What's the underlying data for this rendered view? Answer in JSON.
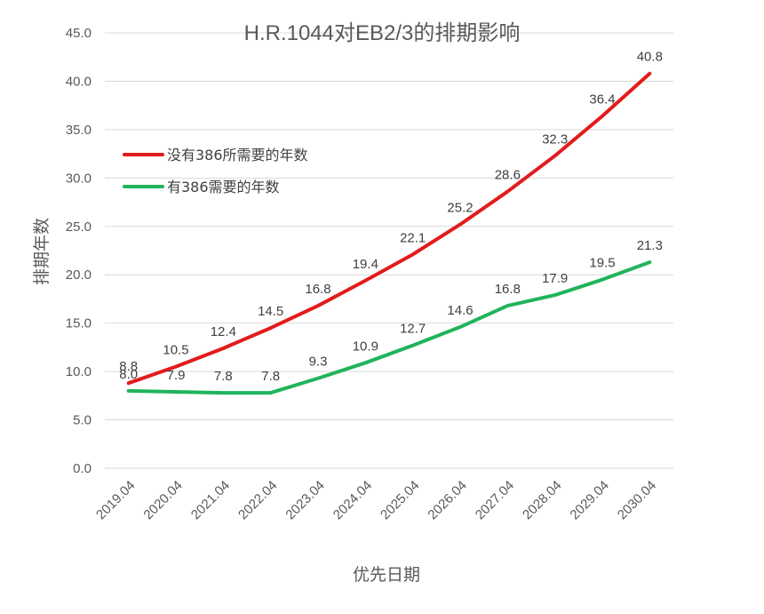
{
  "chart_data": {
    "type": "line",
    "title": "H.R.1044对EB2/3的排期影响",
    "xlabel": "优先日期",
    "ylabel": "排期年数",
    "categories": [
      "2019.04",
      "2020.04",
      "2021.04",
      "2022.04",
      "2023.04",
      "2024.04",
      "2025.04",
      "2026.04",
      "2027.04",
      "2028.04",
      "2029.04",
      "2030.04"
    ],
    "ylim": [
      0,
      45
    ],
    "yticks": [
      "0.0",
      "5.0",
      "10.0",
      "15.0",
      "20.0",
      "25.0",
      "30.0",
      "35.0",
      "40.0",
      "45.0"
    ],
    "grid": true,
    "legend_position": "upper-left",
    "series": [
      {
        "name": "没有386所需要的年数",
        "color": "#e31b1b",
        "values": [
          8.8,
          10.5,
          12.4,
          14.5,
          16.8,
          19.4,
          22.1,
          25.2,
          28.6,
          32.3,
          36.4,
          40.8
        ],
        "labels": [
          "8.8",
          "10.5",
          "12.4",
          "14.5",
          "16.8",
          "19.4",
          "22.1",
          "25.2",
          "28.6",
          "32.3",
          "36.4",
          "40.8"
        ]
      },
      {
        "name": "有386需要的年数",
        "color": "#1fb45a",
        "values": [
          8.0,
          7.9,
          7.8,
          7.8,
          9.3,
          10.9,
          12.7,
          14.6,
          16.8,
          17.9,
          19.5,
          21.3
        ],
        "labels": [
          "8.0",
          "7.9",
          "7.8",
          "7.8",
          "9.3",
          "10.9",
          "12.7",
          "14.6",
          "16.8",
          "17.9",
          "19.5",
          "21.3"
        ]
      }
    ]
  }
}
